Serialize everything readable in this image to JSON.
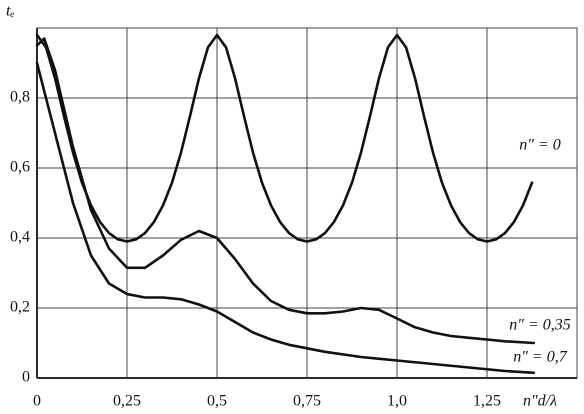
{
  "chart_data": {
    "type": "line",
    "y_label": "tₑ",
    "x_label": "n″d/λ",
    "xlim": [
      0,
      1.5
    ],
    "ylim": [
      0,
      1.0
    ],
    "xticks": [
      0,
      {
        "value": 0.25,
        "label": "0,25"
      },
      {
        "value": 0.5,
        "label": "0,5"
      },
      {
        "value": 0.75,
        "label": "0,75"
      },
      {
        "value": 1.0,
        "label": "1,0"
      },
      {
        "value": 1.25,
        "label": "1,25"
      }
    ],
    "yticks": [
      0,
      {
        "value": 0.2,
        "label": "0,2"
      },
      {
        "value": 0.4,
        "label": "0,4"
      },
      {
        "value": 0.6,
        "label": "0,6"
      },
      {
        "value": 0.8,
        "label": "0,8"
      }
    ],
    "grid": true,
    "series": [
      {
        "name": "n″ = 0",
        "color": "#111111",
        "x": [
          0,
          0.025,
          0.05,
          0.075,
          0.1,
          0.125,
          0.15,
          0.175,
          0.2,
          0.225,
          0.25,
          0.275,
          0.3,
          0.325,
          0.35,
          0.375,
          0.4,
          0.425,
          0.45,
          0.475,
          0.5,
          0.525,
          0.55,
          0.575,
          0.6,
          0.625,
          0.65,
          0.675,
          0.7,
          0.725,
          0.75,
          0.775,
          0.8,
          0.825,
          0.85,
          0.875,
          0.9,
          0.925,
          0.95,
          0.975,
          1.0,
          1.025,
          1.05,
          1.075,
          1.1,
          1.125,
          1.15,
          1.175,
          1.2,
          1.225,
          1.25,
          1.275,
          1.3,
          1.325,
          1.35,
          1.375
        ],
        "values": [
          0.98,
          0.945,
          0.857,
          0.748,
          0.644,
          0.558,
          0.493,
          0.446,
          0.414,
          0.396,
          0.39,
          0.396,
          0.414,
          0.446,
          0.493,
          0.558,
          0.644,
          0.748,
          0.857,
          0.945,
          0.98,
          0.945,
          0.857,
          0.748,
          0.644,
          0.558,
          0.493,
          0.446,
          0.414,
          0.396,
          0.39,
          0.396,
          0.414,
          0.446,
          0.493,
          0.558,
          0.644,
          0.748,
          0.857,
          0.945,
          0.98,
          0.945,
          0.857,
          0.748,
          0.644,
          0.558,
          0.493,
          0.446,
          0.414,
          0.396,
          0.39,
          0.396,
          0.414,
          0.446,
          0.493,
          0.558
        ]
      },
      {
        "name": "n″ = 0,35",
        "color": "#111111",
        "x": [
          0,
          0.02,
          0.05,
          0.1,
          0.15,
          0.2,
          0.25,
          0.3,
          0.35,
          0.4,
          0.45,
          0.5,
          0.55,
          0.6,
          0.65,
          0.7,
          0.75,
          0.8,
          0.85,
          0.9,
          0.95,
          1.0,
          1.05,
          1.1,
          1.15,
          1.2,
          1.25,
          1.3,
          1.38
        ],
        "values": [
          0.95,
          0.97,
          0.88,
          0.66,
          0.48,
          0.37,
          0.315,
          0.315,
          0.35,
          0.395,
          0.42,
          0.4,
          0.34,
          0.27,
          0.22,
          0.195,
          0.185,
          0.185,
          0.19,
          0.2,
          0.195,
          0.17,
          0.145,
          0.13,
          0.12,
          0.115,
          0.11,
          0.105,
          0.1
        ]
      },
      {
        "name": "n″ = 0,7",
        "color": "#111111",
        "x": [
          0,
          0.05,
          0.1,
          0.15,
          0.2,
          0.25,
          0.3,
          0.35,
          0.4,
          0.45,
          0.5,
          0.55,
          0.6,
          0.65,
          0.7,
          0.75,
          0.8,
          0.9,
          1.0,
          1.1,
          1.2,
          1.3,
          1.38
        ],
        "values": [
          0.9,
          0.7,
          0.5,
          0.35,
          0.27,
          0.24,
          0.23,
          0.23,
          0.225,
          0.21,
          0.19,
          0.16,
          0.13,
          0.11,
          0.095,
          0.085,
          0.075,
          0.06,
          0.05,
          0.04,
          0.03,
          0.02,
          0.015
        ]
      }
    ]
  }
}
